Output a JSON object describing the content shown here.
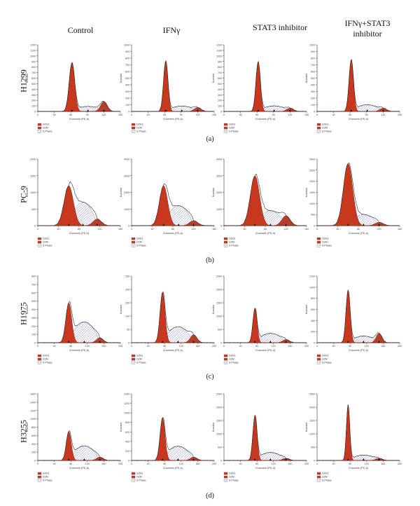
{
  "columns": [
    "Control",
    "IFNγ",
    "STAT3 inhibitor",
    "IFNγ+STAT3\ninhibitor"
  ],
  "rows": [
    "H1299",
    "PC-9",
    "H1975",
    "H3255"
  ],
  "panel_labels": [
    "(a)",
    "(b)",
    "(c)",
    "(d)"
  ],
  "axis": {
    "xlabel": "Channels (PE-A)",
    "ylabel": "Number"
  },
  "legend": [
    "G0G1",
    "G2M",
    "S Phase"
  ],
  "colors": {
    "g1": "#c8381e",
    "g2": "#b5402a",
    "s": "#6a70b8",
    "line": "#222222"
  },
  "chart_data": [
    {
      "type": "histogram-grid",
      "row": "H1299",
      "panels": [
        {
          "title": "Control",
          "xlim": [
            0,
            150
          ],
          "ylim": [
            0,
            1200
          ],
          "yticks": [
            0,
            100,
            200,
            300,
            400,
            500,
            600,
            700,
            800,
            900,
            1000,
            1100,
            1200
          ],
          "xticks": [
            0,
            30,
            60,
            90,
            120,
            150
          ],
          "peak": 880,
          "g1_mean": 62,
          "g1_sd": 5,
          "g1_height": 880,
          "g2_mean": 120,
          "g2_sd": 6,
          "g2_height": 180,
          "s_height": 90
        },
        {
          "title": "IFNγ",
          "xlim": [
            0,
            150
          ],
          "ylim": [
            0,
            1000
          ],
          "yticks": [
            0,
            100,
            200,
            300,
            400,
            500,
            600,
            700,
            800,
            900,
            1000
          ],
          "xticks": [
            0,
            30,
            60,
            90,
            120,
            150
          ],
          "peak": 760,
          "g1_mean": 62,
          "g1_sd": 4,
          "g1_height": 760,
          "g2_mean": 120,
          "g2_sd": 6,
          "g2_height": 60,
          "s_height": 80
        },
        {
          "title": "STAT3 inhibitor",
          "xlim": [
            0,
            150
          ],
          "ylim": [
            0,
            1200
          ],
          "yticks": [
            0,
            100,
            200,
            300,
            400,
            500,
            600,
            700,
            800,
            900,
            1000,
            1100,
            1200
          ],
          "xticks": [
            0,
            30,
            60,
            90,
            120,
            150
          ],
          "peak": 900,
          "g1_mean": 62,
          "g1_sd": 4,
          "g1_height": 900,
          "g2_mean": 120,
          "g2_sd": 6,
          "g2_height": 60,
          "s_height": 100
        },
        {
          "title": "IFNγ+STAT3 inhibitor",
          "xlim": [
            0,
            150
          ],
          "ylim": [
            0,
            1000
          ],
          "yticks": [
            0,
            100,
            200,
            300,
            400,
            500,
            600,
            700,
            800,
            900,
            1000
          ],
          "xticks": [
            0,
            30,
            60,
            90,
            120,
            150
          ],
          "peak": 780,
          "g1_mean": 62,
          "g1_sd": 4,
          "g1_height": 780,
          "g2_mean": 120,
          "g2_sd": 6,
          "g2_height": 50,
          "s_height": 100
        }
      ]
    },
    {
      "type": "histogram-grid",
      "row": "PC-9",
      "panels": [
        {
          "title": "Control",
          "xlim": [
            0,
            160
          ],
          "ylim": [
            0,
            2000
          ],
          "yticks": [
            0,
            500,
            1000,
            1500,
            2000
          ],
          "xticks": [
            0,
            40,
            80,
            120,
            160
          ],
          "peak": 1300,
          "g1_mean": 60,
          "g1_sd": 9,
          "g1_height": 1200,
          "g2_mean": 115,
          "g2_sd": 8,
          "g2_height": 200,
          "s_height": 700
        },
        {
          "title": "IFNγ",
          "xlim": [
            0,
            160
          ],
          "ylim": [
            0,
            4000
          ],
          "yticks": [
            0,
            1000,
            2000,
            3000,
            4000
          ],
          "xticks": [
            0,
            40,
            80,
            120,
            160
          ],
          "peak": 2800,
          "g1_mean": 62,
          "g1_sd": 8,
          "g1_height": 2400,
          "g2_mean": 120,
          "g2_sd": 8,
          "g2_height": 300,
          "s_height": 1200
        },
        {
          "title": "STAT3 inhibitor",
          "xlim": [
            0,
            160
          ],
          "ylim": [
            0,
            4000
          ],
          "yticks": [
            0,
            1000,
            2000,
            3000,
            4000
          ],
          "xticks": [
            0,
            40,
            80,
            120,
            160
          ],
          "peak": 3200,
          "g1_mean": 60,
          "g1_sd": 9,
          "g1_height": 3000,
          "g2_mean": 120,
          "g2_sd": 8,
          "g2_height": 600,
          "s_height": 900
        },
        {
          "title": "IFNγ+STAT3 inhibitor",
          "xlim": [
            0,
            160
          ],
          "ylim": [
            0,
            3000
          ],
          "yticks": [
            0,
            500,
            1000,
            1500,
            2000,
            2500,
            3000
          ],
          "xticks": [
            0,
            40,
            80,
            120,
            160
          ],
          "peak": 2800,
          "g1_mean": 60,
          "g1_sd": 9,
          "g1_height": 2800,
          "g2_mean": 120,
          "g2_sd": 8,
          "g2_height": 150,
          "s_height": 500
        }
      ]
    },
    {
      "type": "histogram-grid",
      "row": "H1975",
      "panels": [
        {
          "title": "Control",
          "xlim": [
            0,
            200
          ],
          "ylim": [
            0,
            800
          ],
          "yticks": [
            0,
            100,
            200,
            300,
            400,
            500,
            600,
            700,
            800
          ],
          "xticks": [
            0,
            40,
            80,
            120,
            160,
            200
          ],
          "peak": 620,
          "g1_mean": 75,
          "g1_sd": 7,
          "g1_height": 480,
          "g2_mean": 150,
          "g2_sd": 8,
          "g2_height": 60,
          "s_height": 250
        },
        {
          "title": "IFNγ",
          "xlim": [
            0,
            200
          ],
          "ylim": [
            0,
            250
          ],
          "yticks": [
            0,
            50,
            100,
            150,
            200,
            250
          ],
          "xticks": [
            0,
            40,
            80,
            120,
            160,
            200
          ],
          "peak": 210,
          "g1_mean": 75,
          "g1_sd": 6,
          "g1_height": 190,
          "g2_mean": 150,
          "g2_sd": 8,
          "g2_height": 30,
          "s_height": 60
        },
        {
          "title": "STAT3 inhibitor",
          "xlim": [
            0,
            200
          ],
          "ylim": [
            0,
            2500
          ],
          "yticks": [
            0,
            500,
            1000,
            1500,
            2000,
            2500
          ],
          "xticks": [
            0,
            40,
            80,
            120,
            160,
            200
          ],
          "peak": 1900,
          "g1_mean": 75,
          "g1_sd": 5,
          "g1_height": 1300,
          "g2_mean": 150,
          "g2_sd": 8,
          "g2_height": 120,
          "s_height": 350
        },
        {
          "title": "IFNγ+STAT3 inhibitor",
          "xlim": [
            0,
            200
          ],
          "ylim": [
            0,
            1200
          ],
          "yticks": [
            0,
            200,
            400,
            600,
            800,
            1000,
            1200
          ],
          "xticks": [
            0,
            40,
            80,
            120,
            160,
            200
          ],
          "peak": 980,
          "g1_mean": 75,
          "g1_sd": 5,
          "g1_height": 950,
          "g2_mean": 150,
          "g2_sd": 7,
          "g2_height": 170,
          "s_height": 120
        }
      ]
    },
    {
      "type": "histogram-grid",
      "row": "H3255",
      "panels": [
        {
          "title": "Control",
          "xlim": [
            0,
            200
          ],
          "ylim": [
            0,
            1600
          ],
          "yticks": [
            0,
            200,
            400,
            600,
            800,
            1000,
            1200,
            1400,
            1600
          ],
          "xticks": [
            0,
            40,
            80,
            120,
            160,
            200
          ],
          "peak": 1220,
          "g1_mean": 75,
          "g1_sd": 6,
          "g1_height": 700,
          "g2_mean": 150,
          "g2_sd": 8,
          "g2_height": 80,
          "s_height": 350
        },
        {
          "title": "IFNγ",
          "xlim": [
            0,
            200
          ],
          "ylim": [
            0,
            1400
          ],
          "yticks": [
            0,
            200,
            400,
            600,
            800,
            1000,
            1200,
            1400
          ],
          "xticks": [
            0,
            40,
            80,
            120,
            160,
            200
          ],
          "peak": 1150,
          "g1_mean": 75,
          "g1_sd": 6,
          "g1_height": 900,
          "g2_mean": 150,
          "g2_sd": 8,
          "g2_height": 70,
          "s_height": 300
        },
        {
          "title": "STAT3 inhibitor",
          "xlim": [
            0,
            200
          ],
          "ylim": [
            0,
            2500
          ],
          "yticks": [
            0,
            500,
            1000,
            1500,
            2000,
            2500
          ],
          "xticks": [
            0,
            40,
            80,
            120,
            160,
            200
          ],
          "peak": 2100,
          "g1_mean": 75,
          "g1_sd": 5,
          "g1_height": 1700,
          "g2_mean": 150,
          "g2_sd": 8,
          "g2_height": 80,
          "s_height": 300
        },
        {
          "title": "IFNγ+STAT3 inhibitor",
          "xlim": [
            0,
            200
          ],
          "ylim": [
            0,
            2500
          ],
          "yticks": [
            0,
            500,
            1000,
            1500,
            2000,
            2500
          ],
          "xticks": [
            0,
            40,
            80,
            120,
            160,
            200
          ],
          "peak": 2200,
          "g1_mean": 75,
          "g1_sd": 4,
          "g1_height": 2100,
          "g2_mean": 150,
          "g2_sd": 8,
          "g2_height": 80,
          "s_height": 200
        }
      ]
    }
  ]
}
